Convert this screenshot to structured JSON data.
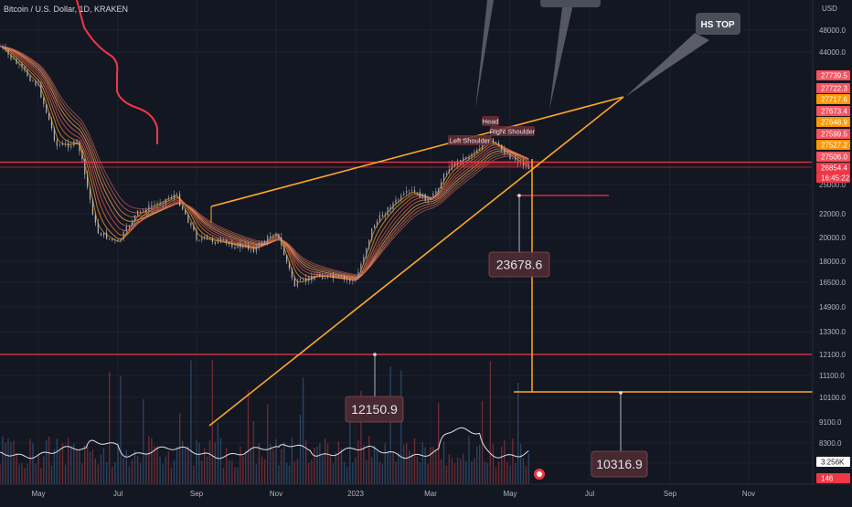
{
  "header": {
    "symbol_title": "Bitcoin / U.S. Dollar, 1D, KRAKEN"
  },
  "price_axis": {
    "currency": "USD",
    "ticks": [
      "48000.0",
      "44000.0",
      "25000.0",
      "22000.0",
      "20000.0",
      "18000.0",
      "16500.0",
      "14900.0",
      "13300.0",
      "12100.0",
      "11100.0",
      "10100.0",
      "9100.0",
      "8300.0",
      "7500.0"
    ]
  },
  "price_badges": [
    {
      "text": "27739.5",
      "color": "#f7525f"
    },
    {
      "text": "27722.3",
      "color": "#f7525f"
    },
    {
      "text": "27717.6",
      "color": "#ff9800"
    },
    {
      "text": "27673.4",
      "color": "#f7525f"
    },
    {
      "text": "27648.9",
      "color": "#ff9800"
    },
    {
      "text": "27599.5",
      "color": "#f7525f"
    },
    {
      "text": "27527.2",
      "color": "#ff9800"
    },
    {
      "text": "27506.0",
      "color": "#f7525f"
    },
    {
      "text": "26854.4",
      "color": "#f23645"
    },
    {
      "text": "16:45:22",
      "color": "#f23645"
    },
    {
      "text": "3.256K",
      "color": "#ffffff"
    },
    {
      "text": "146",
      "color": "#f23645"
    }
  ],
  "time_axis": {
    "ticks": [
      "May",
      "Jul",
      "Sep",
      "Nov",
      "2023",
      "Mar",
      "May",
      "Jul",
      "Sep",
      "Nov"
    ]
  },
  "annotations": {
    "callout_hs_top": "HS TOP",
    "pattern_labels": [
      "Left Shoulder",
      "Head",
      "Right Shoulder"
    ],
    "price_targets": [
      "23678.6",
      "12150.9",
      "10316.9"
    ]
  },
  "colors": {
    "background": "#131722",
    "wedge_lines": "#ffa726",
    "horizontal_levels": "#f23645",
    "volume_up": "#7a2e35",
    "volume_down": "#2e4a6b",
    "volume_ma": "#e0e3eb"
  },
  "chart_data": {
    "type": "line",
    "title": "Bitcoin / U.S. Dollar, 1D, KRAKEN",
    "x_range": [
      "2022-04",
      "2023-11"
    ],
    "y_scale": "log",
    "y_range": [
      7500,
      48000
    ],
    "series": [
      {
        "x": [
          "2022-04",
          "2022-05-01",
          "2022-05-15",
          "2022-06-01",
          "2022-06-15",
          "2022-07-01",
          "2022-07-15",
          "2022-08-01",
          "2022-08-15",
          "2022-09-01",
          "2022-09-15",
          "2022-10-01",
          "2022-10-15",
          "2022-11-01",
          "2022-11-15",
          "2022-12-01",
          "2022-12-15",
          "2023-01-01",
          "2023-01-15",
          "2023-02-01",
          "2023-02-15",
          "2023-03-01",
          "2023-03-15",
          "2023-04-01",
          "2023-04-15",
          "2023-05-01",
          "2023-05-15"
        ],
        "values": [
          45000,
          38000,
          29500,
          29800,
          20500,
          19500,
          22000,
          23000,
          24000,
          20000,
          19700,
          19300,
          19000,
          20500,
          16300,
          17000,
          16800,
          16600,
          21000,
          23000,
          24300,
          23300,
          27000,
          28400,
          30300,
          28200,
          26854
        ]
      }
    ],
    "horizontal_levels": [
      27506,
      12100
    ],
    "targets": [
      23678.6,
      12150.9,
      10316.9
    ],
    "legend": "none",
    "grid": true
  }
}
